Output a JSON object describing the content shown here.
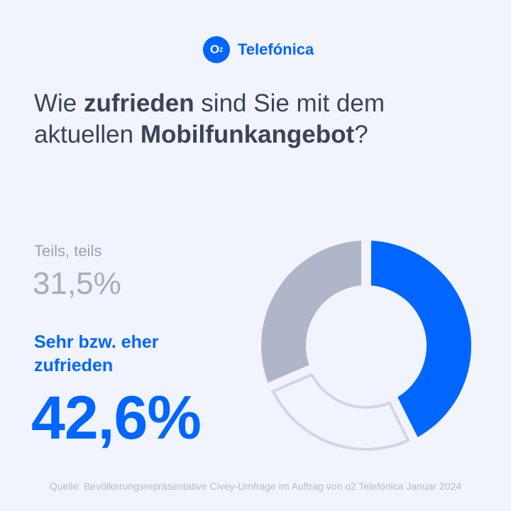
{
  "brand": {
    "logo_mark": "O2",
    "name": "Telefónica",
    "color": "#0066ff"
  },
  "title": {
    "part1": "Wie ",
    "bold1": "zufrieden",
    "part2": " sind Sie mit dem aktuellen ",
    "bold2": "Mobilfunkangebot",
    "part3": "?"
  },
  "teils": {
    "label": "Teils, teils",
    "value": "31,5%"
  },
  "zufrieden": {
    "label": "Sehr bzw. eher zufrieden",
    "value": "42,6%"
  },
  "source": "Quelle: Bevölkerungsrepräsentative Civey-Umfrage im Auftrag von o2 Telefónica Januar 2024",
  "chart_data": {
    "type": "pie",
    "donut": true,
    "slices": [
      {
        "name": "Sehr bzw. eher zufrieden",
        "value": 42.6,
        "color": "#0066ff",
        "style": "filled"
      },
      {
        "name": "Rest",
        "value": 25.9,
        "color": "#d3d6e2",
        "style": "outline"
      },
      {
        "name": "Teils, teils",
        "value": 31.5,
        "color": "#b0b6c9",
        "style": "filled"
      }
    ]
  }
}
